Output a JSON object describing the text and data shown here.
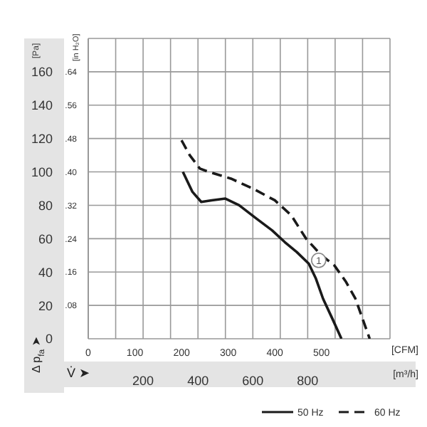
{
  "chart_data": {
    "type": "line",
    "xlabel": "[m³/h]",
    "x2label": "[CFM]",
    "ylabel": "[Pa]",
    "y2label": "[in H₂O]",
    "annotations": [
      "Δ p$_{fa}$ ➤",
      "V̇ ➤",
      {
        "text": "1",
        "x": 840,
        "y": 47
      }
    ],
    "xlim": [
      0,
      1100
    ],
    "xticks": [
      {
        "value": 0,
        "label": null
      },
      {
        "value": 100,
        "label": null
      },
      200,
      {
        "value": 300,
        "label": null
      },
      400,
      {
        "value": 500,
        "label": null
      },
      600,
      {
        "value": 700,
        "label": null
      },
      800,
      {
        "value": 900,
        "label": null
      },
      {
        "value": 1000,
        "label": null
      },
      {
        "value": 1100,
        "label": null
      }
    ],
    "x2lim": [
      0,
      647
    ],
    "x2ticks": [
      0,
      100,
      200,
      300,
      400,
      500
    ],
    "ylim": [
      0,
      180
    ],
    "yticks": [
      0,
      20,
      40,
      60,
      80,
      100,
      120,
      140,
      160,
      {
        "value": 180,
        "label": null
      }
    ],
    "y2lim": [
      0,
      0.72
    ],
    "y2ticks": [
      {
        "value": 0,
        "label": null
      },
      {
        "value": 0.08,
        "label": ".08"
      },
      {
        "value": 0.16,
        "label": ".16"
      },
      {
        "value": 0.24,
        "label": ".24"
      },
      {
        "value": 0.32,
        "label": ".32"
      },
      {
        "value": 0.4,
        "label": ".40"
      },
      {
        "value": 0.48,
        "label": ".48"
      },
      {
        "value": 0.56,
        "label": ".56"
      },
      {
        "value": 0.64,
        "label": ".64"
      }
    ],
    "grid": true,
    "legend": "bottom right",
    "marker": "none",
    "series": [
      {
        "name": "50 Hz",
        "color": "#1a1a1a",
        "line_style": "solid",
        "x": [
          345,
          380,
          412,
          450,
          500,
          550,
          613,
          670,
          716,
          760,
          804,
          830,
          856,
          890,
          923
        ],
        "values": [
          100,
          88,
          82,
          83,
          84,
          80,
          72,
          65,
          58,
          52,
          45,
          36,
          24,
          12,
          0
        ]
      },
      {
        "name": "60 Hz",
        "color": "#1a1a1a",
        "line_style": "dashed",
        "x": [
          340,
          370,
          407,
          440,
          480,
          520,
          600,
          680,
          740,
          794,
          850,
          897,
          940,
          974,
          1000,
          1026
        ],
        "values": [
          119,
          110,
          102,
          100,
          98,
          96,
          90,
          83,
          74,
          60,
          50,
          44,
          34,
          24,
          12,
          0
        ]
      }
    ]
  }
}
